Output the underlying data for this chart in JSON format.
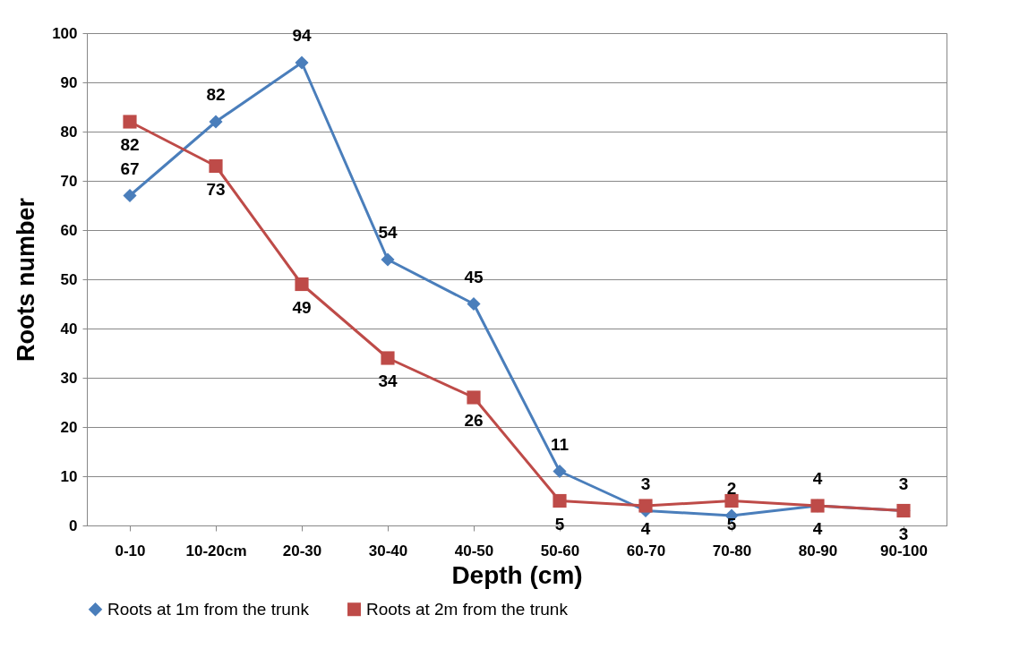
{
  "chart_data": {
    "type": "line",
    "xlabel": "Depth (cm)",
    "ylabel": "Roots number",
    "categories": [
      "0-10",
      "10-20cm",
      "20-30",
      "30-40",
      "40-50",
      "50-60",
      "60-70",
      "70-80",
      "80-90",
      "90-100"
    ],
    "series": [
      {
        "name": "Roots at 1m from the trunk",
        "color": "#4a7ebb",
        "marker": "diamond",
        "values": [
          67,
          82,
          94,
          54,
          45,
          11,
          3,
          2,
          4,
          3
        ]
      },
      {
        "name": "Roots at 2m from the trunk",
        "color": "#be4b48",
        "marker": "square",
        "values": [
          82,
          73,
          49,
          34,
          26,
          5,
          4,
          5,
          4,
          3
        ]
      }
    ],
    "ylim": [
      0,
      100
    ],
    "yticks": [
      0,
      10,
      20,
      30,
      40,
      50,
      60,
      70,
      80,
      90,
      100
    ],
    "grid": "y",
    "legend": "bottom",
    "data_labels": true,
    "line_style": "solid"
  }
}
